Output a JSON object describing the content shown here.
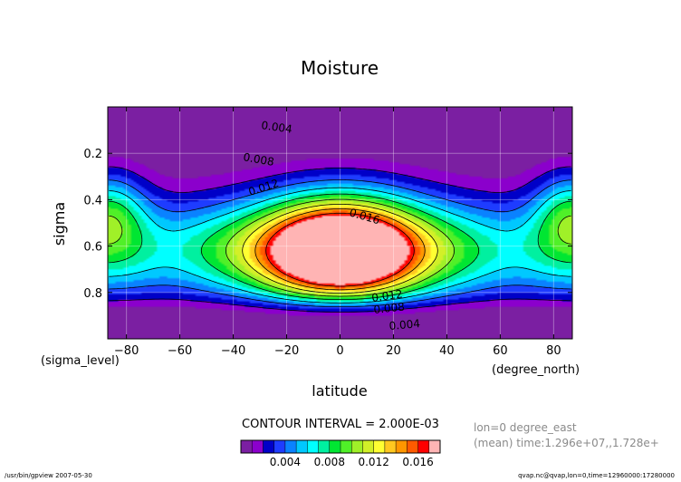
{
  "chart_data": {
    "type": "heatmap",
    "title": "Moisture",
    "xlabel": "latitude",
    "ylabel": "sigma",
    "x_units": "(degree_north)",
    "y_units": "(sigma_level)",
    "xlim": [
      -87,
      87
    ],
    "ylim": [
      1.0,
      0.0
    ],
    "x_ticks": [
      -80,
      -60,
      -40,
      -20,
      0,
      20,
      40,
      60,
      80
    ],
    "y_ticks": [
      0.2,
      0.4,
      0.6,
      0.8
    ],
    "x_tick_labels": [
      "−80",
      "−60",
      "−40",
      "−20",
      "0",
      "20",
      "40",
      "60",
      "80"
    ],
    "y_tick_labels": [
      "0.2",
      "0.4",
      "0.6",
      "0.8"
    ],
    "grid": true,
    "contour_levels": [
      0.004,
      0.008,
      0.012,
      0.016
    ],
    "contour_labels": [
      "0.004",
      "0.008",
      "0.012",
      "0.016",
      "0.012",
      "0.008",
      "0.004"
    ],
    "contour_interval_text": "CONTOUR INTERVAL = 2.000E-03",
    "colorbar": {
      "levels": [
        0.0,
        0.001,
        0.002,
        0.003,
        0.004,
        0.005,
        0.006,
        0.007,
        0.008,
        0.009,
        0.01,
        0.011,
        0.012,
        0.013,
        0.014,
        0.015,
        0.016,
        0.017,
        0.018
      ],
      "colors": [
        "#7b1fa2",
        "#8b00cc",
        "#0000c8",
        "#1e3cff",
        "#0a82ff",
        "#00c8ff",
        "#00ffff",
        "#00f0a0",
        "#00e632",
        "#50f028",
        "#a0f028",
        "#d2f028",
        "#ffff32",
        "#ffc820",
        "#ff9600",
        "#ff5a00",
        "#ff0000",
        "#ffb4b4"
      ],
      "tick_labels": [
        "0.004",
        "0.008",
        "0.012",
        "0.016"
      ]
    },
    "info_lines": [
      "lon=0 degree_east",
      "(mean) time:1.296e+07,,1.728e+"
    ],
    "footer_left": "/usr/bin/gpview  2007-05-30",
    "footer_right": "qvap.nc@qvap,lon=0,time=12960000:17280000"
  }
}
